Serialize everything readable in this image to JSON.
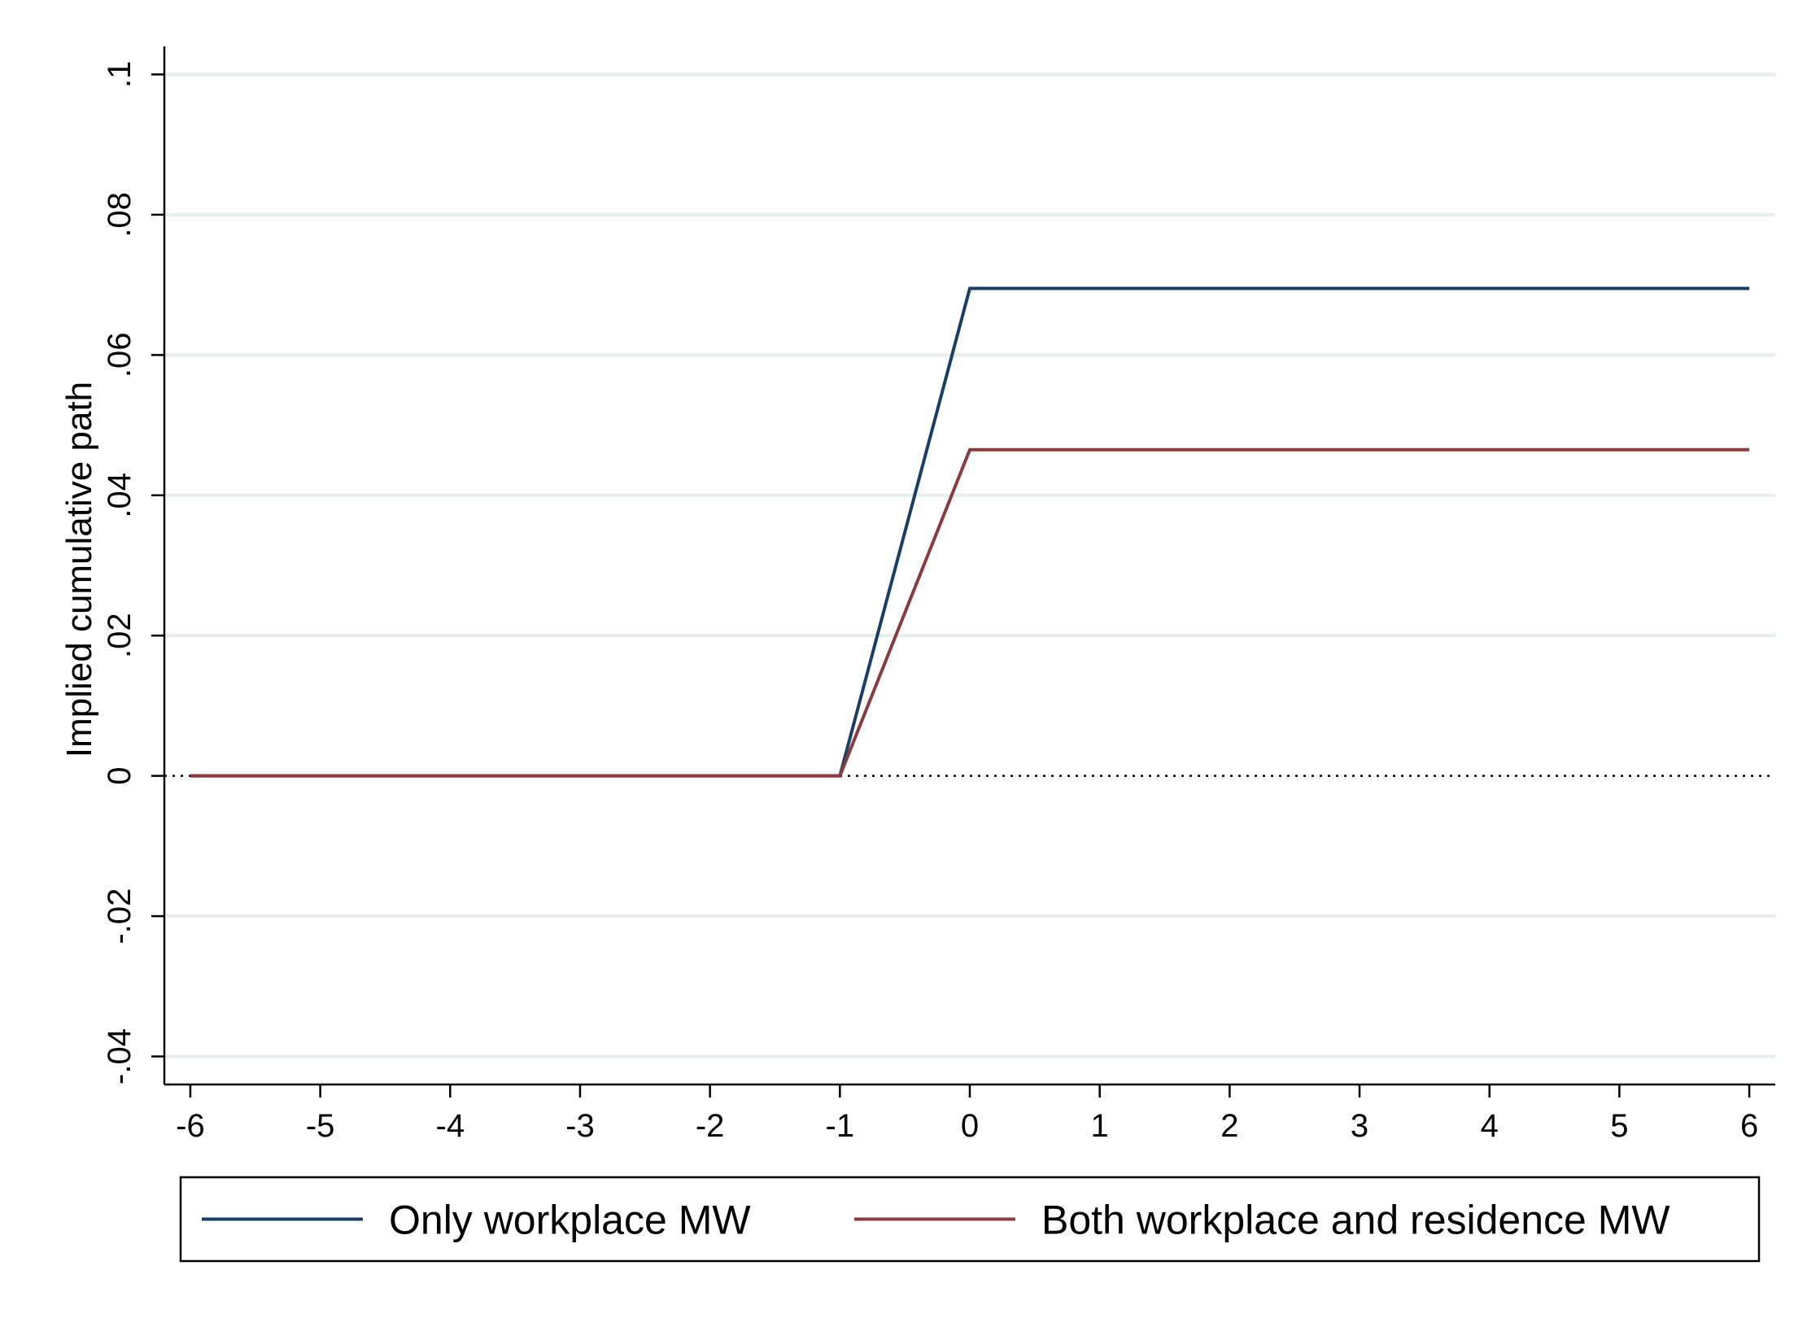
{
  "chart_data": {
    "type": "line",
    "title": "",
    "xlabel": "",
    "ylabel": "Implied cumulative path",
    "x": [
      -6,
      -5,
      -4,
      -3,
      -2,
      -1,
      0,
      1,
      2,
      3,
      4,
      5,
      6
    ],
    "xticks": [
      "-6",
      "-5",
      "-4",
      "-3",
      "-2",
      "-1",
      "0",
      "1",
      "2",
      "3",
      "4",
      "5",
      "6"
    ],
    "xlim": [
      -6.2,
      6.2
    ],
    "yticks": [
      {
        "value": -0.04,
        "label": "-.04"
      },
      {
        "value": -0.02,
        "label": "-.02"
      },
      {
        "value": 0,
        "label": "0"
      },
      {
        "value": 0.02,
        "label": ".02"
      },
      {
        "value": 0.04,
        "label": ".04"
      },
      {
        "value": 0.06,
        "label": ".06"
      },
      {
        "value": 0.08,
        "label": ".08"
      },
      {
        "value": 0.1,
        "label": ".1"
      }
    ],
    "ylim": [
      -0.044,
      0.104
    ],
    "grid": true,
    "zero_reference_line": "dotted",
    "legend_position": "bottom",
    "series": [
      {
        "name": "Only workplace MW",
        "color": "#1a3e66",
        "values": [
          0,
          0,
          0,
          0,
          0,
          0,
          0.0695,
          0.0695,
          0.0695,
          0.0695,
          0.0695,
          0.0695,
          0.0695
        ]
      },
      {
        "name": "Both workplace and residence MW",
        "color": "#8b3a3f",
        "values": [
          0,
          0,
          0,
          0,
          0,
          0,
          0.0465,
          0.0465,
          0.0465,
          0.0465,
          0.0465,
          0.0465,
          0.0465
        ]
      }
    ]
  }
}
